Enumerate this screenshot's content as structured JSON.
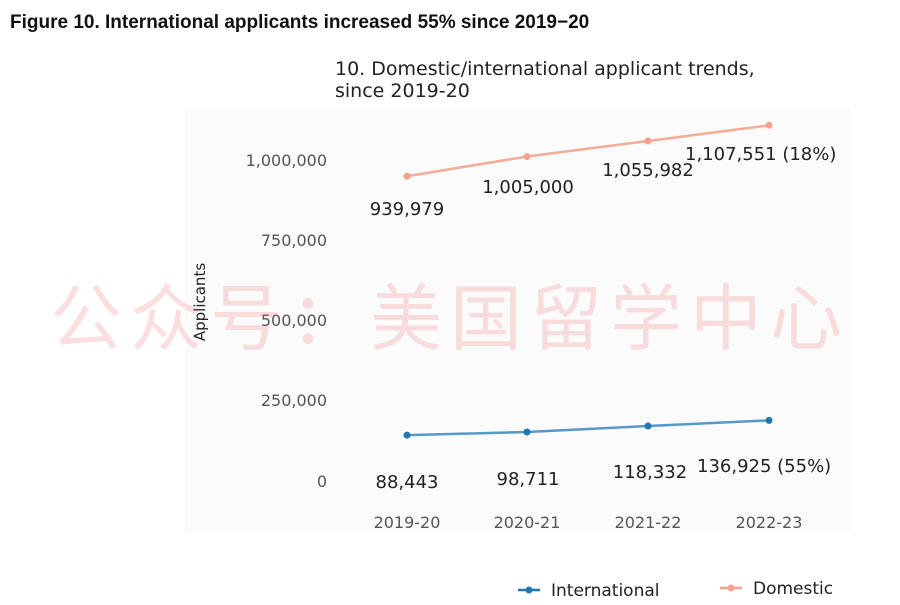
{
  "figure_title": "Figure 10. International applicants increased 55% since 2019−20",
  "watermark": "公众号：美国留学中心",
  "chart_data": {
    "type": "line",
    "title_lines": [
      "10. Domestic/international applicant trends,",
      "since 2019-20"
    ],
    "xlabel": "",
    "ylabel": "Applicants",
    "categories": [
      "2019-20",
      "2020-21",
      "2021-22",
      "2022-23"
    ],
    "ylim": [
      0,
      1150000
    ],
    "yticks": [
      0,
      250000,
      500000,
      750000,
      1000000
    ],
    "ytick_labels": [
      "0",
      "250,000",
      "500,000",
      "750,000",
      "1,000,000"
    ],
    "grid": false,
    "legend_position": "bottom-right",
    "series": [
      {
        "name": "International",
        "color": "#1f77b4",
        "values": [
          88443,
          98711,
          118332,
          136925
        ],
        "labels": [
          "88,443",
          "98,711",
          "118,332",
          "136,925 (55%)"
        ]
      },
      {
        "name": "Domestic",
        "color": "#f4a28c",
        "values": [
          939979,
          1005000,
          1055982,
          1107551
        ],
        "labels": [
          "939,979",
          "1,005,000",
          "1,055,982",
          "1,107,551 (18%)"
        ]
      }
    ]
  }
}
